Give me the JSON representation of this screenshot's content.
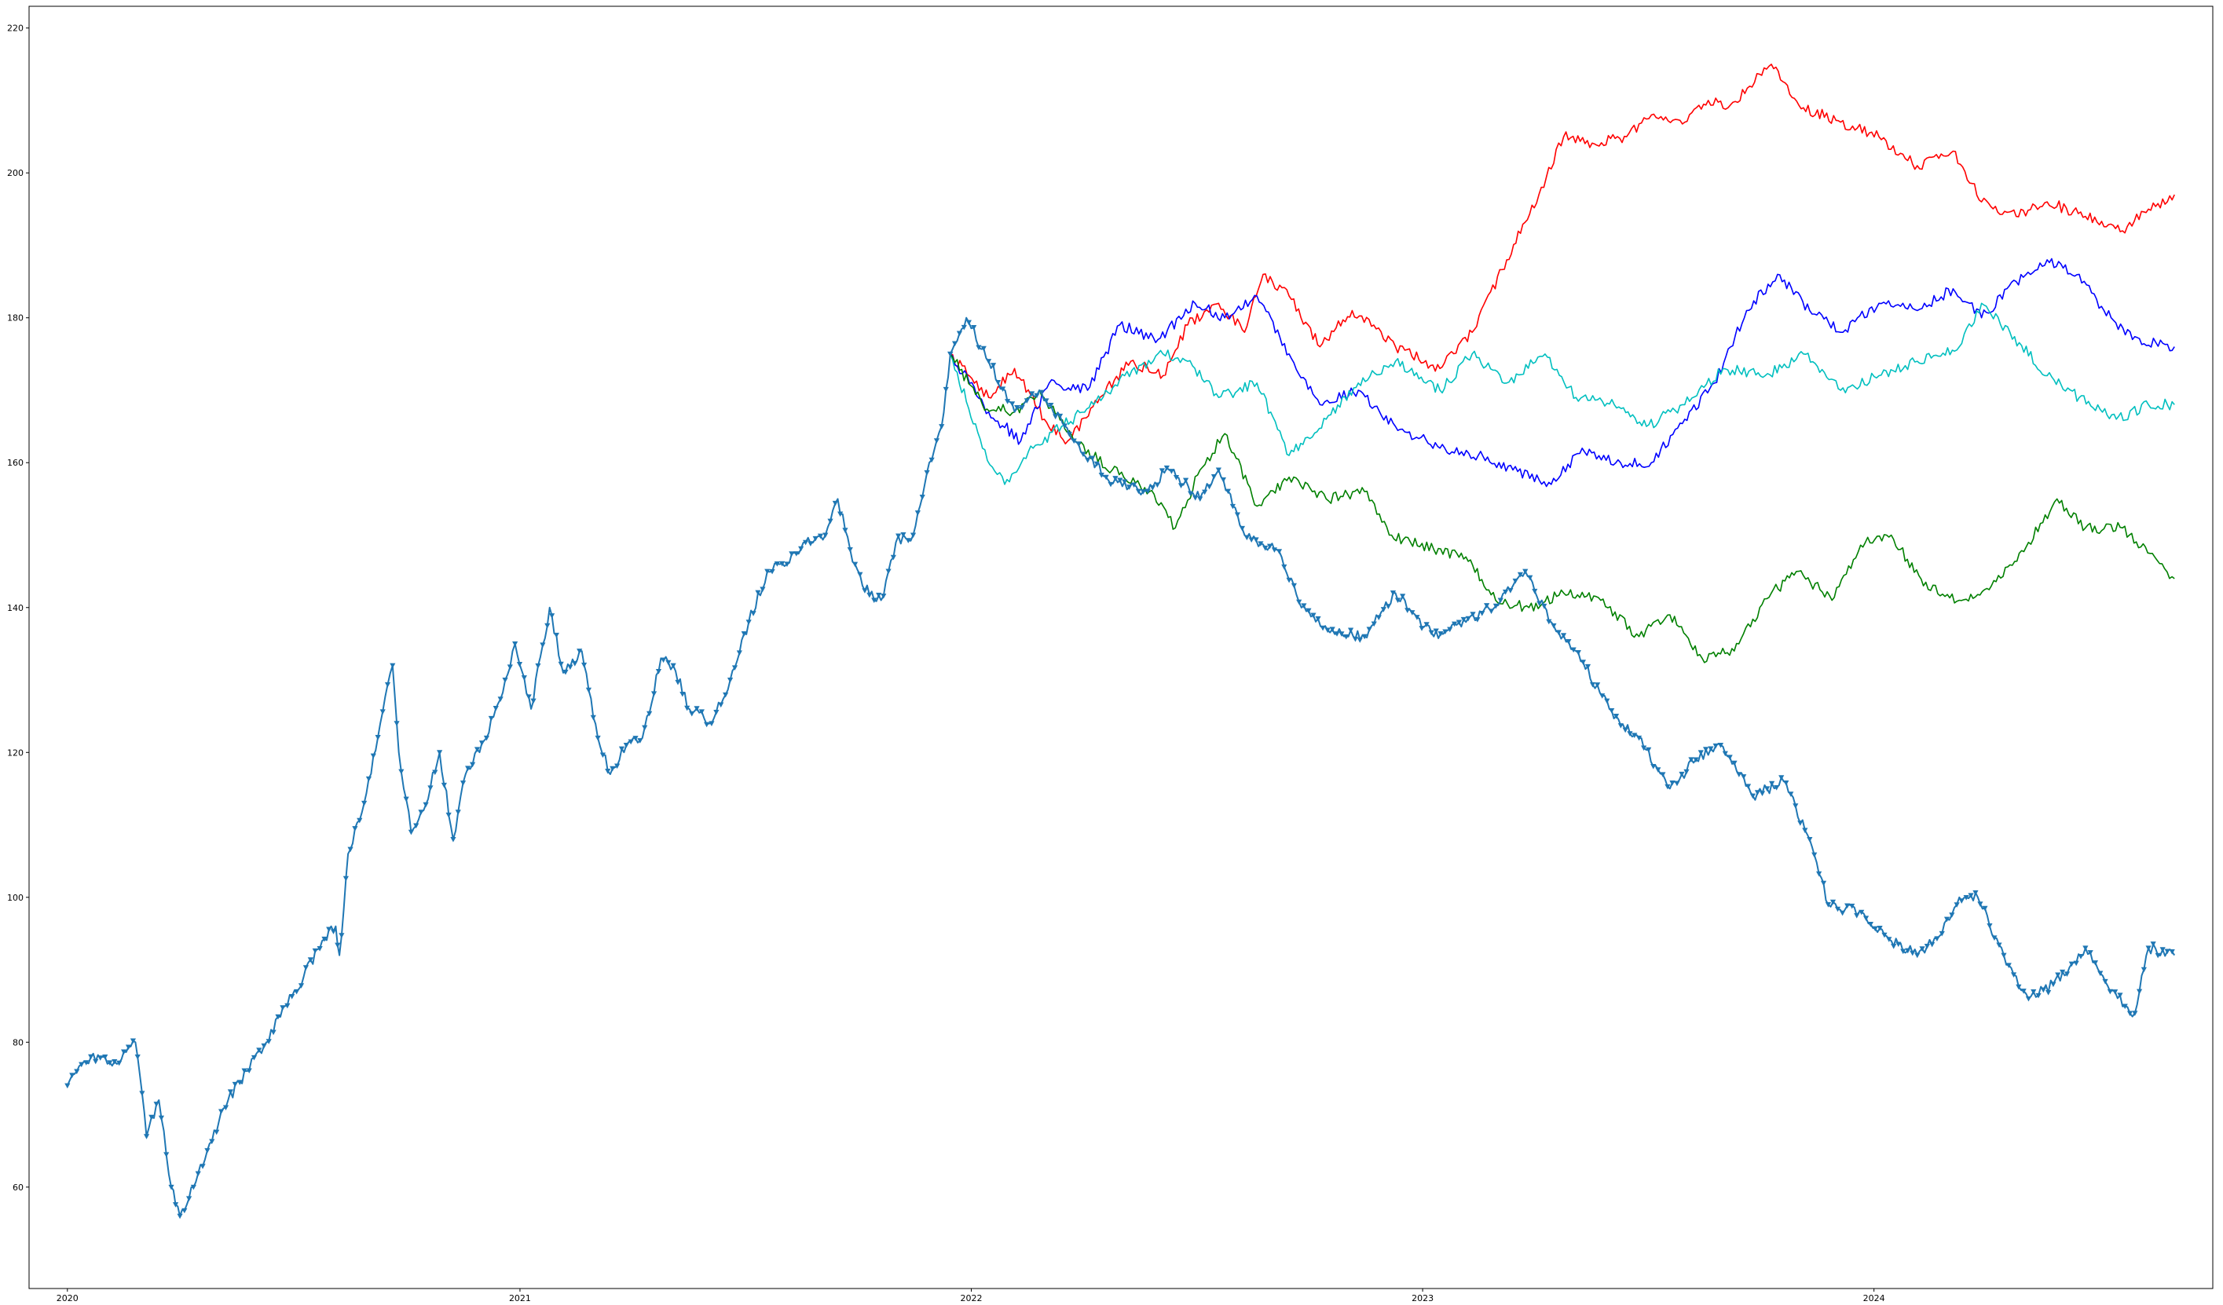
{
  "chart_data": {
    "type": "line",
    "title": "",
    "xlabel": "",
    "ylabel": "",
    "x_range": [
      "2019-12-01",
      "2024-10-01"
    ],
    "ylim": [
      46,
      223
    ],
    "grid": false,
    "legend": "none",
    "x_ticks": [
      {
        "date": "2020-01-01",
        "label": "2020"
      },
      {
        "date": "2021-01-01",
        "label": "2021"
      },
      {
        "date": "2022-01-01",
        "label": "2022"
      },
      {
        "date": "2023-01-01",
        "label": "2023"
      },
      {
        "date": "2024-01-01",
        "label": "2024"
      }
    ],
    "y_ticks": [
      60,
      80,
      100,
      120,
      140,
      160,
      180,
      200,
      220
    ],
    "series": [
      {
        "role": "historical",
        "color": "#1f77b4",
        "marker": "triangle-down",
        "points": [
          [
            "2020-01-01",
            74
          ],
          [
            "2020-01-20",
            78
          ],
          [
            "2020-02-10",
            77
          ],
          [
            "2020-02-25",
            80
          ],
          [
            "2020-03-05",
            67
          ],
          [
            "2020-03-15",
            72
          ],
          [
            "2020-03-25",
            60
          ],
          [
            "2020-04-01",
            56
          ],
          [
            "2020-04-12",
            60
          ],
          [
            "2020-04-25",
            66
          ],
          [
            "2020-05-10",
            72
          ],
          [
            "2020-05-25",
            76
          ],
          [
            "2020-06-10",
            80
          ],
          [
            "2020-06-25",
            85
          ],
          [
            "2020-07-10",
            89
          ],
          [
            "2020-07-25",
            94
          ],
          [
            "2020-08-05",
            96
          ],
          [
            "2020-08-08",
            92
          ],
          [
            "2020-08-15",
            106
          ],
          [
            "2020-08-28",
            113
          ],
          [
            "2020-09-10",
            124
          ],
          [
            "2020-09-20",
            132
          ],
          [
            "2020-09-25",
            120
          ],
          [
            "2020-10-05",
            109
          ],
          [
            "2020-10-15",
            112
          ],
          [
            "2020-10-28",
            120
          ],
          [
            "2020-11-08",
            108
          ],
          [
            "2020-11-18",
            117
          ],
          [
            "2020-12-05",
            122
          ],
          [
            "2020-12-20",
            130
          ],
          [
            "2020-12-28",
            135
          ],
          [
            "2021-01-10",
            126
          ],
          [
            "2021-01-25",
            140
          ],
          [
            "2021-02-05",
            131
          ],
          [
            "2021-02-20",
            134
          ],
          [
            "2021-03-05",
            122
          ],
          [
            "2021-03-15",
            117
          ],
          [
            "2021-03-28",
            121
          ],
          [
            "2021-04-10",
            122
          ],
          [
            "2021-04-25",
            133
          ],
          [
            "2021-05-05",
            132
          ],
          [
            "2021-05-18",
            126
          ],
          [
            "2021-06-05",
            124
          ],
          [
            "2021-06-20",
            130
          ],
          [
            "2021-07-05",
            138
          ],
          [
            "2021-07-20",
            145
          ],
          [
            "2021-08-05",
            146
          ],
          [
            "2021-08-20",
            149
          ],
          [
            "2021-09-05",
            150
          ],
          [
            "2021-09-15",
            155
          ],
          [
            "2021-09-25",
            148
          ],
          [
            "2021-10-05",
            143
          ],
          [
            "2021-10-20",
            141
          ],
          [
            "2021-11-01",
            149
          ],
          [
            "2021-11-15",
            150
          ],
          [
            "2021-11-28",
            160
          ],
          [
            "2021-12-08",
            165
          ],
          [
            "2021-12-15",
            175
          ]
        ]
      },
      {
        "role": "projection",
        "color": "#ff0000",
        "marker": "none",
        "points": [
          [
            "2021-12-15",
            175
          ],
          [
            "2022-01-15",
            169
          ],
          [
            "2022-02-05",
            173
          ],
          [
            "2022-03-01",
            166
          ],
          [
            "2022-03-20",
            163
          ],
          [
            "2022-04-15",
            169
          ],
          [
            "2022-05-10",
            174
          ],
          [
            "2022-06-05",
            172
          ],
          [
            "2022-06-25",
            179
          ],
          [
            "2022-07-20",
            182
          ],
          [
            "2022-08-10",
            178
          ],
          [
            "2022-08-25",
            186
          ],
          [
            "2022-09-15",
            183
          ],
          [
            "2022-10-10",
            176
          ],
          [
            "2022-11-05",
            181
          ],
          [
            "2022-12-10",
            176
          ],
          [
            "2023-01-15",
            173
          ],
          [
            "2023-02-10",
            178
          ],
          [
            "2023-03-10",
            188
          ],
          [
            "2023-04-05",
            197
          ],
          [
            "2023-04-25",
            205
          ],
          [
            "2023-05-20",
            204
          ],
          [
            "2023-06-15",
            205
          ],
          [
            "2023-07-05",
            208
          ],
          [
            "2023-08-01",
            207
          ],
          [
            "2023-08-20",
            210
          ],
          [
            "2023-09-05",
            209
          ],
          [
            "2023-10-10",
            215
          ],
          [
            "2023-11-05",
            209
          ],
          [
            "2023-12-05",
            207
          ],
          [
            "2024-01-05",
            205
          ],
          [
            "2024-02-05",
            201
          ],
          [
            "2024-03-05",
            203
          ],
          [
            "2024-03-28",
            196
          ],
          [
            "2024-04-25",
            194
          ],
          [
            "2024-05-20",
            196
          ],
          [
            "2024-06-20",
            194
          ],
          [
            "2024-07-20",
            192
          ],
          [
            "2024-08-10",
            195
          ],
          [
            "2024-08-31",
            197
          ]
        ]
      },
      {
        "role": "projection",
        "color": "#0000ff",
        "marker": "none",
        "points": [
          [
            "2021-12-15",
            175
          ],
          [
            "2022-01-15",
            167
          ],
          [
            "2022-02-10",
            163
          ],
          [
            "2022-03-05",
            171
          ],
          [
            "2022-04-05",
            170
          ],
          [
            "2022-05-01",
            179
          ],
          [
            "2022-06-01",
            177
          ],
          [
            "2022-07-01",
            182
          ],
          [
            "2022-07-25",
            180
          ],
          [
            "2022-08-20",
            183
          ],
          [
            "2022-09-15",
            175
          ],
          [
            "2022-10-10",
            168
          ],
          [
            "2022-11-10",
            170
          ],
          [
            "2022-12-10",
            165
          ],
          [
            "2023-01-15",
            162
          ],
          [
            "2023-02-15",
            161
          ],
          [
            "2023-03-15",
            159
          ],
          [
            "2023-04-15",
            157
          ],
          [
            "2023-05-10",
            162
          ],
          [
            "2023-06-10",
            160
          ],
          [
            "2023-07-05",
            160
          ],
          [
            "2023-08-01",
            166
          ],
          [
            "2023-08-25",
            171
          ],
          [
            "2023-09-20",
            181
          ],
          [
            "2023-10-15",
            186
          ],
          [
            "2023-11-10",
            181
          ],
          [
            "2023-12-05",
            178
          ],
          [
            "2024-01-05",
            182
          ],
          [
            "2024-02-05",
            181
          ],
          [
            "2024-03-05",
            184
          ],
          [
            "2024-03-28",
            180
          ],
          [
            "2024-04-25",
            185
          ],
          [
            "2024-05-20",
            188
          ],
          [
            "2024-06-15",
            186
          ],
          [
            "2024-07-05",
            181
          ],
          [
            "2024-07-28",
            177
          ],
          [
            "2024-08-31",
            176
          ]
        ]
      },
      {
        "role": "projection",
        "color": "#00bfbf",
        "marker": "none",
        "points": [
          [
            "2021-12-15",
            175
          ],
          [
            "2022-01-10",
            162
          ],
          [
            "2022-01-28",
            157
          ],
          [
            "2022-02-20",
            162
          ],
          [
            "2022-03-15",
            165
          ],
          [
            "2022-04-10",
            168
          ],
          [
            "2022-05-05",
            172
          ],
          [
            "2022-06-05",
            175
          ],
          [
            "2022-06-25",
            174
          ],
          [
            "2022-07-20",
            169
          ],
          [
            "2022-08-20",
            171
          ],
          [
            "2022-09-15",
            161
          ],
          [
            "2022-10-15",
            166
          ],
          [
            "2022-11-10",
            171
          ],
          [
            "2022-12-10",
            174
          ],
          [
            "2023-01-15",
            170
          ],
          [
            "2023-02-10",
            175
          ],
          [
            "2023-03-10",
            171
          ],
          [
            "2023-04-10",
            175
          ],
          [
            "2023-05-05",
            169
          ],
          [
            "2023-06-05",
            168
          ],
          [
            "2023-07-01",
            165
          ],
          [
            "2023-08-01",
            168
          ],
          [
            "2023-09-01",
            173
          ],
          [
            "2023-10-05",
            172
          ],
          [
            "2023-11-05",
            175
          ],
          [
            "2023-12-05",
            170
          ],
          [
            "2024-01-05",
            172
          ],
          [
            "2024-02-05",
            174
          ],
          [
            "2024-03-10",
            176
          ],
          [
            "2024-03-28",
            182
          ],
          [
            "2024-04-20",
            178
          ],
          [
            "2024-05-20",
            172
          ],
          [
            "2024-06-15",
            169
          ],
          [
            "2024-07-15",
            166
          ],
          [
            "2024-08-10",
            168
          ],
          [
            "2024-08-31",
            168
          ]
        ]
      },
      {
        "role": "projection",
        "color": "#008000",
        "marker": "none",
        "points": [
          [
            "2021-12-15",
            175
          ],
          [
            "2022-01-10",
            168
          ],
          [
            "2022-02-05",
            167
          ],
          [
            "2022-02-25",
            170
          ],
          [
            "2022-03-25",
            163
          ],
          [
            "2022-04-25",
            159
          ],
          [
            "2022-05-25",
            156
          ],
          [
            "2022-06-15",
            151
          ],
          [
            "2022-07-05",
            159
          ],
          [
            "2022-07-25",
            164
          ],
          [
            "2022-08-20",
            154
          ],
          [
            "2022-09-15",
            158
          ],
          [
            "2022-10-15",
            155
          ],
          [
            "2022-11-15",
            156
          ],
          [
            "2022-12-05",
            150
          ],
          [
            "2023-01-10",
            148
          ],
          [
            "2023-02-05",
            147
          ],
          [
            "2023-03-01",
            141
          ],
          [
            "2023-03-28",
            140
          ],
          [
            "2023-04-25",
            142
          ],
          [
            "2023-05-25",
            141
          ],
          [
            "2023-06-25",
            136
          ],
          [
            "2023-07-20",
            139
          ],
          [
            "2023-08-15",
            133
          ],
          [
            "2023-09-10",
            134
          ],
          [
            "2023-10-10",
            142
          ],
          [
            "2023-11-01",
            145
          ],
          [
            "2023-11-28",
            141
          ],
          [
            "2023-12-25",
            149
          ],
          [
            "2024-01-15",
            150
          ],
          [
            "2024-02-10",
            143
          ],
          [
            "2024-03-10",
            141
          ],
          [
            "2024-04-05",
            143
          ],
          [
            "2024-05-05",
            149
          ],
          [
            "2024-05-28",
            155
          ],
          [
            "2024-06-20",
            151
          ],
          [
            "2024-07-20",
            151
          ],
          [
            "2024-08-15",
            147
          ],
          [
            "2024-08-31",
            144
          ]
        ]
      },
      {
        "role": "projection",
        "color": "#1f77b4",
        "marker": "triangle-down",
        "points": [
          [
            "2021-12-15",
            175
          ],
          [
            "2021-12-28",
            180
          ],
          [
            "2022-01-15",
            174
          ],
          [
            "2022-02-05",
            167
          ],
          [
            "2022-02-25",
            170
          ],
          [
            "2022-03-25",
            163
          ],
          [
            "2022-04-20",
            158
          ],
          [
            "2022-05-20",
            156
          ],
          [
            "2022-06-10",
            159
          ],
          [
            "2022-07-05",
            155
          ],
          [
            "2022-07-20",
            159
          ],
          [
            "2022-08-10",
            150
          ],
          [
            "2022-09-05",
            148
          ],
          [
            "2022-09-25",
            140
          ],
          [
            "2022-10-20",
            137
          ],
          [
            "2022-11-15",
            136
          ],
          [
            "2022-12-10",
            142
          ],
          [
            "2023-01-10",
            136
          ],
          [
            "2023-02-05",
            138
          ],
          [
            "2023-03-05",
            141
          ],
          [
            "2023-03-25",
            145
          ],
          [
            "2023-04-15",
            138
          ],
          [
            "2023-05-05",
            134
          ],
          [
            "2023-06-01",
            126
          ],
          [
            "2023-06-25",
            122
          ],
          [
            "2023-07-20",
            115
          ],
          [
            "2023-08-10",
            119
          ],
          [
            "2023-08-30",
            121
          ],
          [
            "2023-09-25",
            114
          ],
          [
            "2023-10-20",
            116
          ],
          [
            "2023-11-10",
            108
          ],
          [
            "2023-11-25",
            99
          ],
          [
            "2023-12-20",
            98
          ],
          [
            "2024-01-15",
            94
          ],
          [
            "2024-02-05",
            92
          ],
          [
            "2024-02-25",
            95
          ],
          [
            "2024-03-10",
            100
          ],
          [
            "2024-03-25",
            100
          ],
          [
            "2024-04-15",
            92
          ],
          [
            "2024-05-05",
            86
          ],
          [
            "2024-05-25",
            88
          ],
          [
            "2024-06-20",
            93
          ],
          [
            "2024-07-10",
            87
          ],
          [
            "2024-07-30",
            84
          ],
          [
            "2024-08-10",
            93
          ],
          [
            "2024-08-31",
            92
          ]
        ]
      }
    ]
  }
}
